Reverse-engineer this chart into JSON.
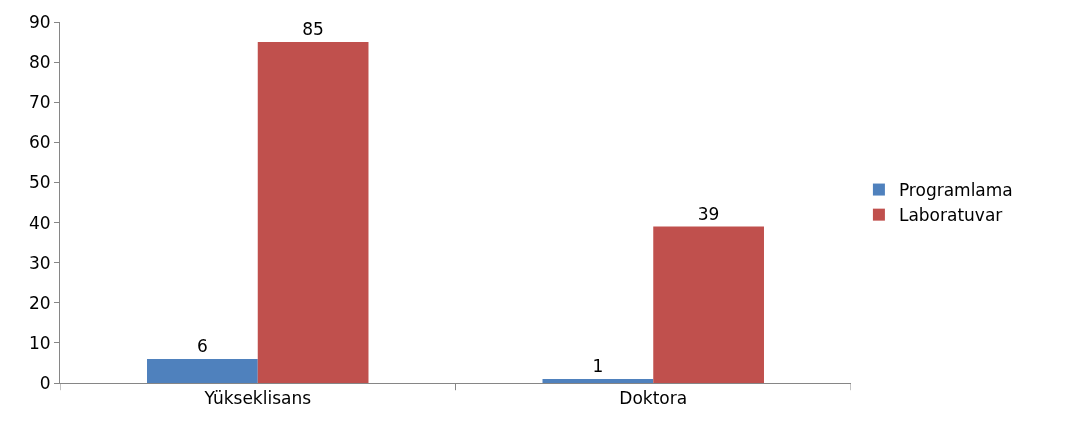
{
  "chart_data": {
    "type": "bar",
    "categories": [
      "Yükseklisans",
      "Doktora"
    ],
    "series": [
      {
        "name": "Programlama",
        "color": "#4f81bd",
        "values": [
          6,
          1
        ]
      },
      {
        "name": "Laboratuvar",
        "color": "#c0504d",
        "values": [
          85,
          39
        ]
      }
    ],
    "ylim": [
      0,
      90
    ],
    "yticks": [
      0,
      10,
      20,
      30,
      40,
      50,
      60,
      70,
      80,
      90
    ],
    "legend": "right",
    "data_labels": true
  }
}
